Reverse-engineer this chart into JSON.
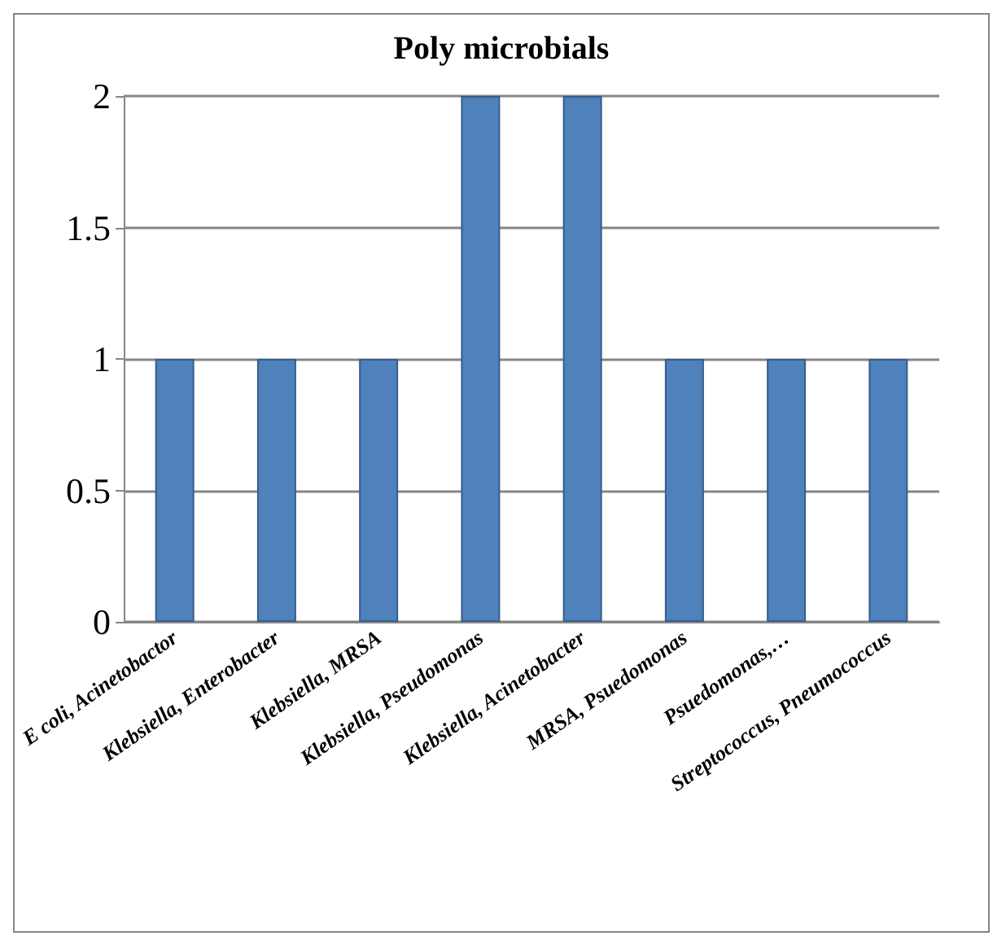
{
  "chart_data": {
    "type": "bar",
    "title": "Poly microbials",
    "categories": [
      "E coli, Acinetobactor",
      "Klebsiella, Enterobacter",
      "Klebsiella, MRSA",
      "Klebsiella, Pseudomonas",
      "Klebsiella, Acinetobacter",
      "MRSA, Psuedomonas",
      "Psuedomonas,…",
      "Streptococcus, Pneumococcus"
    ],
    "values": [
      1,
      1,
      1,
      2,
      2,
      1,
      1,
      1
    ],
    "color": "#4f81bd",
    "ylim": [
      0,
      2
    ],
    "yticks": [
      0,
      0.5,
      1,
      1.5,
      2
    ],
    "grid": "y"
  }
}
